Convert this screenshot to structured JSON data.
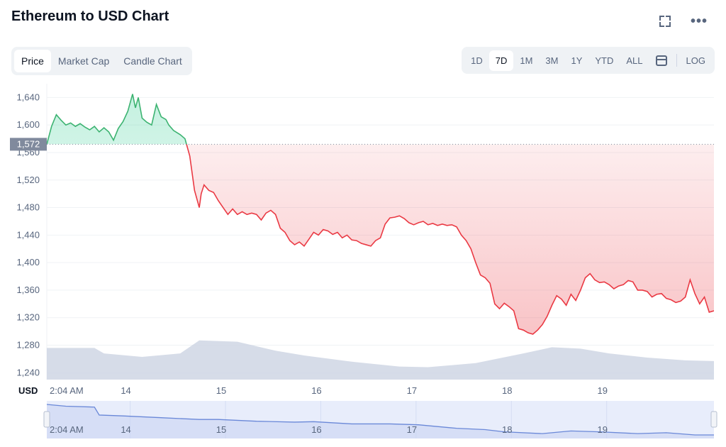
{
  "header": {
    "title": "Ethereum to USD Chart",
    "expand_icon": "expand-icon",
    "more_icon": "more-icon",
    "more_label": "•••"
  },
  "tabs": [
    {
      "label": "Price",
      "active": true
    },
    {
      "label": "Market Cap",
      "active": false
    },
    {
      "label": "Candle Chart",
      "active": false
    }
  ],
  "ranges": [
    {
      "label": "1D",
      "active": false
    },
    {
      "label": "7D",
      "active": true
    },
    {
      "label": "1M",
      "active": false
    },
    {
      "label": "3M",
      "active": false
    },
    {
      "label": "1Y",
      "active": false
    },
    {
      "label": "YTD",
      "active": false
    },
    {
      "label": "ALL",
      "active": false
    }
  ],
  "scale_label": "LOG",
  "colors": {
    "up": "#16c784",
    "up_line": "#3cb371",
    "down": "#ea3943",
    "volume": "#cfd6e4",
    "navigator_line": "#6a88d8"
  },
  "chart_data": {
    "type": "line",
    "title": "Ethereum to USD Chart",
    "currency_label": "USD",
    "reference_value": 1572,
    "reference_label": "1,572",
    "ylim": [
      1230,
      1660
    ],
    "y_ticks": [
      "1,240",
      "1,280",
      "1,320",
      "1,360",
      "1,400",
      "1,440",
      "1,480",
      "1,520",
      "1,560",
      "1,600",
      "1,640"
    ],
    "y_tick_values": [
      1240,
      1280,
      1320,
      1360,
      1400,
      1440,
      1480,
      1520,
      1560,
      1600,
      1640
    ],
    "x_ticks": [
      "2:04 AM",
      "14",
      "15",
      "16",
      "17",
      "18",
      "19"
    ],
    "x_tick_values": [
      0,
      0.83,
      1.83,
      2.83,
      3.83,
      4.83,
      5.83
    ],
    "xlim": [
      0,
      7.0
    ],
    "series": [
      {
        "values_x": [
          0,
          0.05,
          0.1,
          0.15,
          0.2,
          0.25,
          0.3,
          0.35,
          0.4,
          0.45,
          0.5,
          0.55,
          0.6,
          0.65,
          0.7,
          0.75,
          0.8,
          0.85,
          0.9,
          0.93,
          0.96,
          1.0,
          1.05,
          1.1,
          1.15,
          1.2,
          1.25,
          1.28,
          1.33,
          1.4,
          1.45,
          1.5,
          1.55,
          1.6,
          1.62,
          1.65,
          1.7,
          1.75,
          1.8,
          1.85,
          1.9,
          1.95,
          2.0,
          2.05,
          2.1,
          2.15,
          2.2,
          2.25,
          2.3,
          2.35,
          2.4,
          2.45,
          2.5,
          2.55,
          2.6,
          2.65,
          2.7,
          2.75,
          2.8,
          2.85,
          2.9,
          2.95,
          3.0,
          3.05,
          3.1,
          3.15,
          3.2,
          3.25,
          3.3,
          3.35,
          3.4,
          3.45,
          3.5,
          3.55,
          3.6,
          3.65,
          3.7,
          3.75,
          3.8,
          3.85,
          3.9,
          3.95,
          4.0,
          4.05,
          4.1,
          4.15,
          4.2,
          4.25,
          4.3,
          4.35,
          4.4,
          4.45,
          4.5,
          4.55,
          4.6,
          4.65,
          4.7,
          4.75,
          4.8,
          4.85,
          4.9,
          4.95,
          5.0,
          5.05,
          5.1,
          5.15,
          5.2,
          5.25,
          5.3,
          5.35,
          5.4,
          5.45,
          5.5,
          5.55,
          5.6,
          5.65,
          5.7,
          5.75,
          5.8,
          5.85,
          5.9,
          5.95,
          6.0,
          6.05,
          6.1,
          6.15,
          6.2,
          6.25,
          6.3,
          6.35,
          6.4,
          6.45,
          6.5,
          6.55,
          6.6,
          6.65,
          6.7,
          6.75,
          6.8,
          6.85,
          6.9,
          6.95,
          7.0
        ],
        "values": [
          1572,
          1598,
          1615,
          1607,
          1600,
          1603,
          1598,
          1602,
          1597,
          1593,
          1598,
          1590,
          1596,
          1590,
          1578,
          1595,
          1605,
          1620,
          1645,
          1625,
          1640,
          1610,
          1604,
          1600,
          1630,
          1612,
          1608,
          1600,
          1592,
          1586,
          1580,
          1555,
          1505,
          1480,
          1500,
          1513,
          1505,
          1502,
          1490,
          1480,
          1470,
          1478,
          1470,
          1474,
          1470,
          1472,
          1470,
          1462,
          1472,
          1476,
          1470,
          1450,
          1444,
          1432,
          1426,
          1430,
          1424,
          1434,
          1444,
          1440,
          1448,
          1446,
          1441,
          1444,
          1436,
          1440,
          1433,
          1432,
          1428,
          1426,
          1424,
          1432,
          1436,
          1456,
          1465,
          1466,
          1468,
          1464,
          1458,
          1455,
          1458,
          1460,
          1455,
          1457,
          1454,
          1456,
          1454,
          1455,
          1452,
          1440,
          1432,
          1420,
          1400,
          1382,
          1378,
          1370,
          1340,
          1333,
          1341,
          1336,
          1330,
          1304,
          1302,
          1298,
          1296,
          1302,
          1310,
          1322,
          1338,
          1352,
          1347,
          1338,
          1354,
          1345,
          1360,
          1378,
          1384,
          1375,
          1371,
          1372,
          1368,
          1362,
          1366,
          1368,
          1374,
          1372,
          1360,
          1360,
          1358,
          1350,
          1354,
          1355,
          1348,
          1346,
          1342,
          1344,
          1350,
          1375,
          1355,
          1340,
          1350,
          1328,
          1330
        ]
      }
    ],
    "volume": {
      "values_x": [
        0,
        0.5,
        0.6,
        1.0,
        1.4,
        1.6,
        2.0,
        2.4,
        2.7,
        3.2,
        3.7,
        4.0,
        4.5,
        5.0,
        5.3,
        5.6,
        5.9,
        6.3,
        6.7,
        7.0
      ],
      "values": [
        1276,
        1276,
        1268,
        1263,
        1268,
        1287,
        1285,
        1272,
        1265,
        1256,
        1249,
        1248,
        1254,
        1268,
        1277,
        1275,
        1268,
        1262,
        1258,
        1257
      ]
    },
    "navigator": {
      "x_ticks": [
        "2:04 AM",
        "14",
        "15",
        "16",
        "17",
        "18",
        "19"
      ],
      "values_x": [
        0,
        0.2,
        0.5,
        0.55,
        0.8,
        1.2,
        1.6,
        1.8,
        2.2,
        2.6,
        2.8,
        3.2,
        3.6,
        3.9,
        4.3,
        4.6,
        4.8,
        5.2,
        5.5,
        5.8,
        6.2,
        6.5,
        6.8,
        7.0
      ],
      "values": [
        1602,
        1598,
        1596,
        1578,
        1576,
        1572,
        1568,
        1568,
        1564,
        1562,
        1563,
        1558,
        1558,
        1556,
        1548,
        1545,
        1540,
        1536,
        1542,
        1540,
        1536,
        1538,
        1533,
        1533
      ]
    }
  }
}
